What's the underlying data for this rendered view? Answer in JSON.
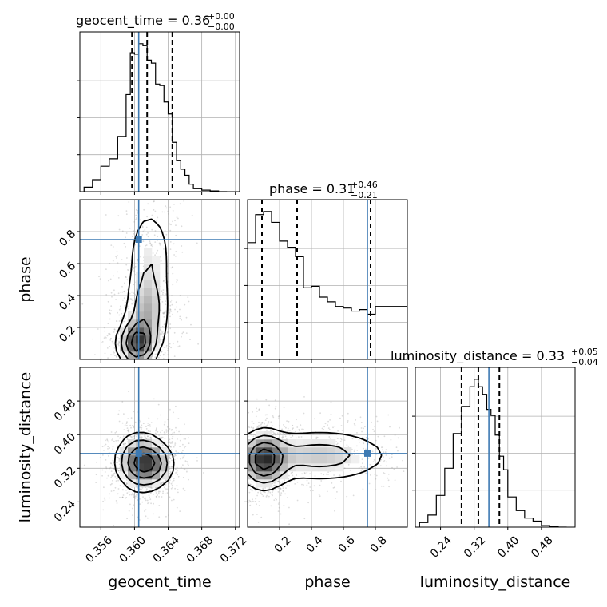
{
  "chart_data": {
    "type": "corner",
    "parameters": [
      {
        "name": "geocent_time",
        "label": "geocent_time",
        "range": [
          0.3535,
          0.3725
        ],
        "ticks": [
          0.356,
          0.36,
          0.364,
          0.368,
          0.372
        ],
        "tick_labels": [
          "0.356",
          "0.360",
          "0.364",
          "0.368",
          "0.372"
        ],
        "title_main": "geocent_time = 0.36",
        "title_sup": "+0.00",
        "title_sub": "−0.00",
        "quantiles": [
          0.3597,
          0.3615,
          0.3645
        ],
        "truth": 0.3605,
        "histogram": {
          "edges": [
            0.354,
            0.355,
            0.356,
            0.357,
            0.358,
            0.359,
            0.3595,
            0.36,
            0.3605,
            0.361,
            0.3615,
            0.362,
            0.3625,
            0.363,
            0.3635,
            0.364,
            0.3645,
            0.365,
            0.3655,
            0.366,
            0.3665,
            0.367,
            0.368,
            0.369,
            0.37,
            0.371
          ],
          "counts": [
            0.03,
            0.08,
            0.17,
            0.22,
            0.37,
            0.65,
            0.93,
            0.92,
            0.99,
            0.98,
            0.88,
            0.86,
            0.72,
            0.71,
            0.6,
            0.52,
            0.33,
            0.21,
            0.15,
            0.11,
            0.05,
            0.02,
            0.01,
            0.005,
            0.0
          ]
        }
      },
      {
        "name": "phase",
        "label": "phase",
        "range": [
          0.0,
          1.0
        ],
        "ticks": [
          0.2,
          0.4,
          0.6,
          0.8
        ],
        "tick_labels": [
          "0.2",
          "0.4",
          "0.6",
          "0.8"
        ],
        "title_main": "phase = 0.31",
        "title_sup": "+0.46",
        "title_sub": "−0.21",
        "quantiles": [
          0.09,
          0.31,
          0.77
        ],
        "truth": 0.75,
        "histogram": {
          "edges": [
            0.0,
            0.05,
            0.1,
            0.15,
            0.2,
            0.25,
            0.3,
            0.35,
            0.4,
            0.45,
            0.5,
            0.55,
            0.6,
            0.65,
            0.7,
            0.75,
            0.8,
            1.0
          ],
          "counts": [
            0.75,
            0.93,
            0.95,
            0.88,
            0.76,
            0.72,
            0.66,
            0.46,
            0.47,
            0.4,
            0.37,
            0.34,
            0.33,
            0.31,
            0.32,
            0.29,
            0.34
          ]
        }
      },
      {
        "name": "luminosity_distance",
        "label": "luminosity_distance",
        "range": [
          0.18,
          0.56
        ],
        "ticks": [
          0.24,
          0.32,
          0.4,
          0.48
        ],
        "tick_labels": [
          "0.24",
          "0.32",
          "0.40",
          "0.48"
        ],
        "title_main": "luminosity_distance = 0.33",
        "title_sup": "+0.05",
        "title_sub": "−0.04",
        "quantiles": [
          0.29,
          0.33,
          0.38
        ],
        "truth": 0.355,
        "histogram": {
          "edges": [
            0.19,
            0.21,
            0.23,
            0.25,
            0.27,
            0.29,
            0.31,
            0.32,
            0.33,
            0.34,
            0.35,
            0.36,
            0.37,
            0.38,
            0.39,
            0.4,
            0.42,
            0.44,
            0.46,
            0.48,
            0.5,
            0.52,
            0.54
          ],
          "counts": [
            0.03,
            0.08,
            0.21,
            0.39,
            0.62,
            0.8,
            0.93,
            0.98,
            0.93,
            0.88,
            0.78,
            0.74,
            0.61,
            0.47,
            0.38,
            0.2,
            0.11,
            0.06,
            0.04,
            0.01,
            0.005,
            0.0
          ]
        }
      }
    ],
    "truth_color": "#3d7ab3",
    "pairs": [
      {
        "x": "geocent_time",
        "y": "phase",
        "density_peaks": [
          {
            "x": 0.3603,
            "y": 0.1,
            "sx": 0.0012,
            "sy": 0.08,
            "w": 1.0
          },
          {
            "x": 0.3615,
            "y": 0.3,
            "sx": 0.0014,
            "sy": 0.14,
            "w": 0.5
          },
          {
            "x": 0.3618,
            "y": 0.65,
            "sx": 0.0015,
            "sy": 0.18,
            "w": 0.3
          }
        ]
      },
      {
        "x": "geocent_time",
        "y": "luminosity_distance",
        "density_peaks": [
          {
            "x": 0.3605,
            "y": 0.335,
            "sx": 0.0014,
            "sy": 0.035,
            "w": 1.0
          },
          {
            "x": 0.3625,
            "y": 0.33,
            "sx": 0.0012,
            "sy": 0.03,
            "w": 0.6
          }
        ]
      },
      {
        "x": "phase",
        "y": "luminosity_distance",
        "density_peaks": [
          {
            "x": 0.1,
            "y": 0.34,
            "sx": 0.08,
            "sy": 0.035,
            "w": 1.0
          },
          {
            "x": 0.45,
            "y": 0.35,
            "sx": 0.25,
            "sy": 0.035,
            "w": 0.45
          }
        ]
      }
    ]
  }
}
